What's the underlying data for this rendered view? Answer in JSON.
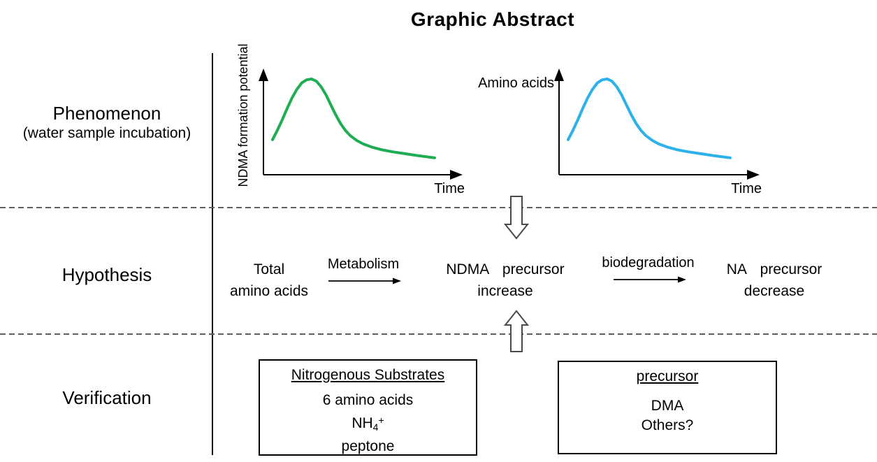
{
  "title": "Graphic Abstract",
  "row_labels": {
    "phenomenon": "Phenomenon",
    "phenomenon_sub": "(water sample incubation)",
    "hypothesis": "Hypothesis",
    "verification": "Verification"
  },
  "chart_data": [
    {
      "type": "line",
      "id": "ndma-formation-potential-vs-time",
      "title": "",
      "ylabel": "NDMA formation potential",
      "xlabel": "Time",
      "color": "#1fad54",
      "axes": "unlabeled qualitative axes with arrowheads",
      "description": "NDMA formation potential rises to a peak early in incubation time then decays with a long tail",
      "points_norm": [
        [
          0.0,
          0.3
        ],
        [
          0.03,
          0.41
        ],
        [
          0.06,
          0.53
        ],
        [
          0.09,
          0.66
        ],
        [
          0.12,
          0.78
        ],
        [
          0.15,
          0.88
        ],
        [
          0.18,
          0.955
        ],
        [
          0.21,
          0.99
        ],
        [
          0.24,
          1.0
        ],
        [
          0.27,
          0.975
        ],
        [
          0.3,
          0.91
        ],
        [
          0.33,
          0.815
        ],
        [
          0.36,
          0.7
        ],
        [
          0.39,
          0.585
        ],
        [
          0.42,
          0.485
        ],
        [
          0.45,
          0.405
        ],
        [
          0.48,
          0.345
        ],
        [
          0.52,
          0.29
        ],
        [
          0.56,
          0.25
        ],
        [
          0.61,
          0.215
        ],
        [
          0.67,
          0.185
        ],
        [
          0.74,
          0.16
        ],
        [
          0.81,
          0.14
        ],
        [
          0.88,
          0.12
        ],
        [
          0.94,
          0.105
        ],
        [
          1.0,
          0.09
        ]
      ]
    },
    {
      "type": "line",
      "id": "amino-acids-vs-time",
      "title": "",
      "ylabel": "Amino acids",
      "xlabel": "Time",
      "color": "#2cb1e8",
      "axes": "unlabeled qualitative axes with arrowheads",
      "description": "Amino acids concentration rises to a peak early in incubation time then decays with a long tail",
      "points_norm": [
        [
          0.0,
          0.3
        ],
        [
          0.03,
          0.41
        ],
        [
          0.06,
          0.53
        ],
        [
          0.09,
          0.66
        ],
        [
          0.12,
          0.78
        ],
        [
          0.15,
          0.88
        ],
        [
          0.18,
          0.955
        ],
        [
          0.21,
          0.99
        ],
        [
          0.24,
          1.0
        ],
        [
          0.27,
          0.975
        ],
        [
          0.3,
          0.91
        ],
        [
          0.33,
          0.815
        ],
        [
          0.36,
          0.7
        ],
        [
          0.39,
          0.585
        ],
        [
          0.42,
          0.485
        ],
        [
          0.45,
          0.405
        ],
        [
          0.48,
          0.345
        ],
        [
          0.52,
          0.29
        ],
        [
          0.56,
          0.25
        ],
        [
          0.61,
          0.215
        ],
        [
          0.67,
          0.185
        ],
        [
          0.74,
          0.16
        ],
        [
          0.81,
          0.14
        ],
        [
          0.88,
          0.12
        ],
        [
          0.94,
          0.105
        ],
        [
          1.0,
          0.09
        ]
      ]
    }
  ],
  "hypothesis_flow": {
    "start_line1": "Total",
    "start_line2": "amino acids",
    "arrow1_label": "Metabolism",
    "mid_line1": "NDMA precursor",
    "mid_line2": "increase",
    "arrow2_label": "biodegradation",
    "end_line1": "NA precursor",
    "end_line2": "decrease"
  },
  "verification_boxes": {
    "box1": {
      "title": "Nitrogenous Substrates",
      "item1": "6 amino acids",
      "item2_base": "NH",
      "item2_sub": "4",
      "item2_sup": "+",
      "item3": "peptone"
    },
    "box2": {
      "title": "precursor",
      "item1": "DMA",
      "item2": "Others?"
    }
  }
}
